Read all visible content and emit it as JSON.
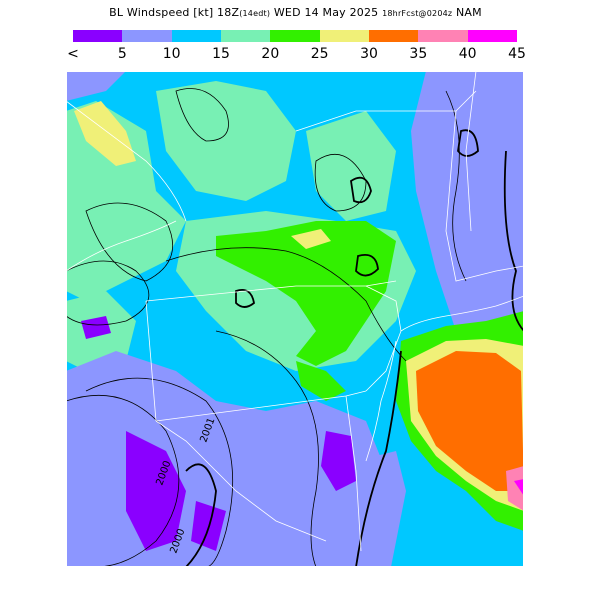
{
  "title": {
    "main": "BL Windspeed [kt] 18Z",
    "local": "(14edt)",
    "date": "WED 14 May 2025",
    "forecast": "18hrFcst@0204z",
    "model": "NAM"
  },
  "colorbar": {
    "colors": [
      "#8a00ff",
      "#8c96ff",
      "#00c8ff",
      "#78f0b4",
      "#32f000",
      "#f0f078",
      "#ff6e00",
      "#ff82b4",
      "#ff00ff"
    ],
    "labels": [
      "<",
      "5",
      "10",
      "15",
      "20",
      "25",
      "30",
      "35",
      "40",
      "45"
    ]
  },
  "contour_labels": [
    "2001",
    "2000",
    "2000"
  ],
  "palette": {
    "purple": "#8a00ff",
    "lavender": "#8c96ff",
    "cyan": "#00c8ff",
    "aqua": "#78f0b4",
    "green": "#32f000",
    "yellow": "#f0f078",
    "orange": "#ff6e00",
    "pink": "#ff82b4",
    "magenta": "#ff00ff"
  }
}
